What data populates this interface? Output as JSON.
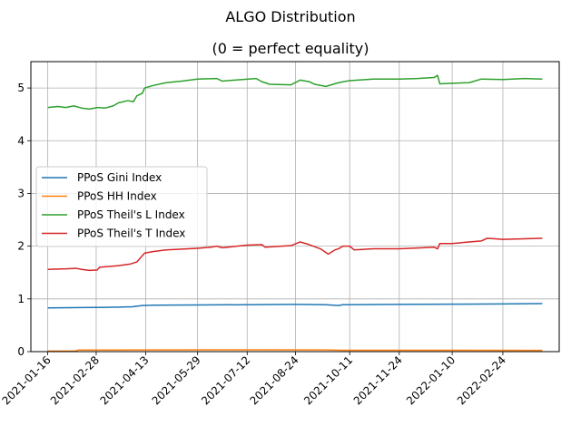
{
  "chart_data": {
    "type": "line",
    "title": "ALGO Distribution",
    "subtitle": "(0 = perfect equality)",
    "xlabel": "",
    "ylabel": "",
    "x_start": "2021-01-16",
    "x_end": "2022-03-31",
    "xlim": [
      "2021-01-01",
      "2022-04-15"
    ],
    "ylim": [
      0,
      5.5
    ],
    "xticks": [
      "2021-01-16",
      "2021-02-28",
      "2021-04-13",
      "2021-05-29",
      "2021-07-12",
      "2021-08-24",
      "2021-10-11",
      "2021-11-24",
      "2022-01-10",
      "2022-02-24"
    ],
    "yticks": [
      0,
      1,
      2,
      3,
      4,
      5
    ],
    "grid": true,
    "legend_position": "center-left",
    "series": [
      {
        "name": "PPoS Gini Index",
        "color": "#1f77b4",
        "points": [
          [
            "2021-01-16",
            0.83
          ],
          [
            "2021-02-15",
            0.835
          ],
          [
            "2021-03-10",
            0.84
          ],
          [
            "2021-04-01",
            0.85
          ],
          [
            "2021-04-10",
            0.875
          ],
          [
            "2021-04-20",
            0.88
          ],
          [
            "2021-05-29",
            0.885
          ],
          [
            "2021-07-12",
            0.89
          ],
          [
            "2021-08-24",
            0.895
          ],
          [
            "2021-09-20",
            0.89
          ],
          [
            "2021-10-01",
            0.875
          ],
          [
            "2021-10-05",
            0.89
          ],
          [
            "2021-11-24",
            0.895
          ],
          [
            "2022-01-10",
            0.9
          ],
          [
            "2022-02-24",
            0.905
          ],
          [
            "2022-03-31",
            0.91
          ]
        ]
      },
      {
        "name": "PPoS HH Index",
        "color": "#ff7f0e",
        "points": [
          [
            "2021-01-16",
            0.01
          ],
          [
            "2021-02-10",
            0.012
          ],
          [
            "2021-02-12",
            0.03
          ],
          [
            "2021-04-13",
            0.032
          ],
          [
            "2021-07-12",
            0.035
          ],
          [
            "2021-09-20",
            0.033
          ],
          [
            "2021-10-05",
            0.025
          ],
          [
            "2022-01-10",
            0.025
          ],
          [
            "2022-03-31",
            0.024
          ]
        ]
      },
      {
        "name": "PPoS Theil's L Index",
        "color": "#2ca02c",
        "points": [
          [
            "2021-01-16",
            4.63
          ],
          [
            "2021-01-25",
            4.65
          ],
          [
            "2021-02-01",
            4.63
          ],
          [
            "2021-02-08",
            4.66
          ],
          [
            "2021-02-15",
            4.62
          ],
          [
            "2021-02-22",
            4.6
          ],
          [
            "2021-03-01",
            4.63
          ],
          [
            "2021-03-08",
            4.62
          ],
          [
            "2021-03-15",
            4.66
          ],
          [
            "2021-03-20",
            4.72
          ],
          [
            "2021-03-28",
            4.76
          ],
          [
            "2021-04-02",
            4.74
          ],
          [
            "2021-04-05",
            4.85
          ],
          [
            "2021-04-10",
            4.9
          ],
          [
            "2021-04-12",
            5.0
          ],
          [
            "2021-04-20",
            5.05
          ],
          [
            "2021-05-01",
            5.1
          ],
          [
            "2021-05-15",
            5.13
          ],
          [
            "2021-05-29",
            5.17
          ],
          [
            "2021-06-15",
            5.18
          ],
          [
            "2021-06-20",
            5.13
          ],
          [
            "2021-07-01",
            5.15
          ],
          [
            "2021-07-20",
            5.18
          ],
          [
            "2021-07-25",
            5.12
          ],
          [
            "2021-08-01",
            5.07
          ],
          [
            "2021-08-20",
            5.06
          ],
          [
            "2021-08-28",
            5.15
          ],
          [
            "2021-09-05",
            5.12
          ],
          [
            "2021-09-10",
            5.07
          ],
          [
            "2021-09-20",
            5.03
          ],
          [
            "2021-10-01",
            5.1
          ],
          [
            "2021-10-11",
            5.14
          ],
          [
            "2021-11-01",
            5.17
          ],
          [
            "2021-11-24",
            5.17
          ],
          [
            "2021-12-10",
            5.18
          ],
          [
            "2021-12-25",
            5.2
          ],
          [
            "2021-12-28",
            5.24
          ],
          [
            "2021-12-30",
            5.08
          ],
          [
            "2022-01-10",
            5.09
          ],
          [
            "2022-01-25",
            5.1
          ],
          [
            "2022-02-05",
            5.17
          ],
          [
            "2022-02-24",
            5.16
          ],
          [
            "2022-03-15",
            5.18
          ],
          [
            "2022-03-31",
            5.17
          ]
        ]
      },
      {
        "name": "PPoS Theil's T Index",
        "color": "#d62728",
        "points": [
          [
            "2021-01-16",
            1.56
          ],
          [
            "2021-02-01",
            1.57
          ],
          [
            "2021-02-10",
            1.58
          ],
          [
            "2021-02-15",
            1.56
          ],
          [
            "2021-02-22",
            1.54
          ],
          [
            "2021-03-01",
            1.55
          ],
          [
            "2021-03-03",
            1.6
          ],
          [
            "2021-03-20",
            1.63
          ],
          [
            "2021-03-30",
            1.66
          ],
          [
            "2021-04-05",
            1.7
          ],
          [
            "2021-04-12",
            1.87
          ],
          [
            "2021-04-20",
            1.9
          ],
          [
            "2021-05-01",
            1.93
          ],
          [
            "2021-05-29",
            1.96
          ],
          [
            "2021-06-10",
            1.98
          ],
          [
            "2021-06-15",
            2.0
          ],
          [
            "2021-06-20",
            1.97
          ],
          [
            "2021-07-12",
            2.02
          ],
          [
            "2021-07-25",
            2.03
          ],
          [
            "2021-07-28",
            1.98
          ],
          [
            "2021-08-20",
            2.01
          ],
          [
            "2021-08-28",
            2.08
          ],
          [
            "2021-09-05",
            2.03
          ],
          [
            "2021-09-15",
            1.95
          ],
          [
            "2021-09-22",
            1.85
          ],
          [
            "2021-09-28",
            1.93
          ],
          [
            "2021-10-01",
            1.95
          ],
          [
            "2021-10-05",
            2.0
          ],
          [
            "2021-10-11",
            2.0
          ],
          [
            "2021-10-15",
            1.93
          ],
          [
            "2021-11-01",
            1.95
          ],
          [
            "2021-11-24",
            1.95
          ],
          [
            "2021-12-15",
            1.97
          ],
          [
            "2021-12-25",
            1.98
          ],
          [
            "2021-12-28",
            1.95
          ],
          [
            "2021-12-30",
            2.05
          ],
          [
            "2022-01-10",
            2.05
          ],
          [
            "2022-01-25",
            2.08
          ],
          [
            "2022-02-05",
            2.1
          ],
          [
            "2022-02-10",
            2.15
          ],
          [
            "2022-02-24",
            2.13
          ],
          [
            "2022-03-15",
            2.14
          ],
          [
            "2022-03-31",
            2.15
          ]
        ]
      }
    ]
  }
}
